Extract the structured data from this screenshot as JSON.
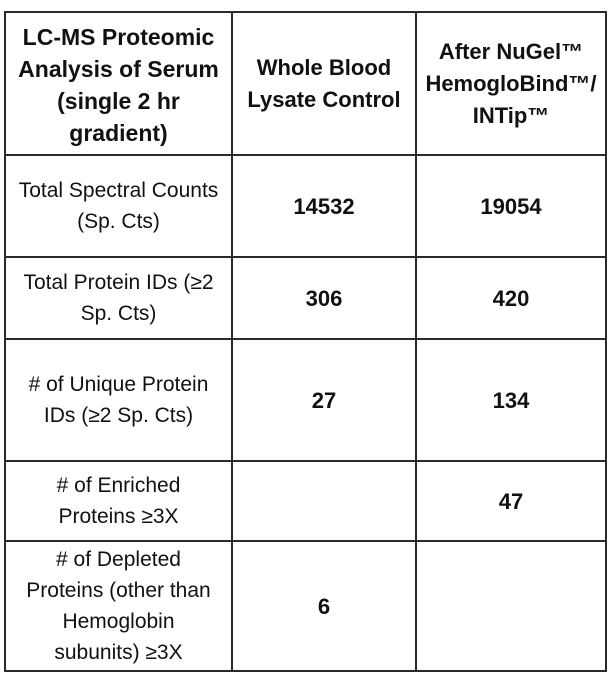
{
  "table": {
    "header": {
      "metric": [
        "LC-MS Proteomic",
        "Analysis of Serum",
        "(single 2 hr",
        "gradient)"
      ],
      "control": [
        "Whole Blood",
        "Lysate Control"
      ],
      "after": [
        "After NuGel™",
        "HemogloBind™/",
        "INTip™"
      ]
    },
    "rows": [
      {
        "label": [
          "Total Spectral Counts",
          "(Sp. Cts)"
        ],
        "control": "14532",
        "after": "19054"
      },
      {
        "label": [
          "Total Protein IDs (≥2",
          "Sp. Cts)"
        ],
        "control": "306",
        "after": "420"
      },
      {
        "label": [
          "# of Unique Protein",
          "IDs  (≥2 Sp. Cts)"
        ],
        "control": "27",
        "after": "134"
      },
      {
        "label": [
          "# of Enriched",
          "Proteins ≥3X"
        ],
        "control": "",
        "after": "47"
      },
      {
        "label": [
          "# of Depleted",
          "Proteins (other than",
          "Hemoglobin",
          "subunits) ≥3X"
        ],
        "control": "6",
        "after": ""
      }
    ]
  }
}
